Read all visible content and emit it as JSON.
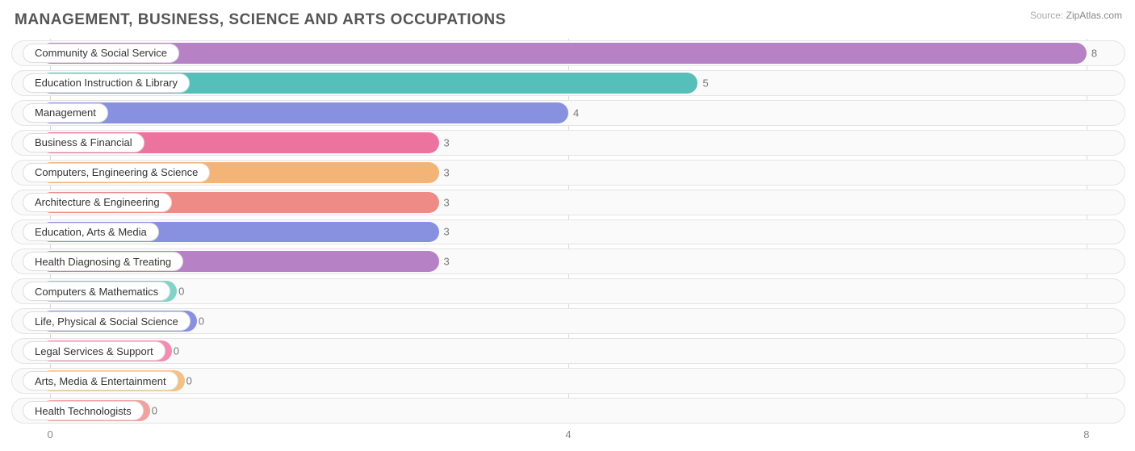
{
  "title": "MANAGEMENT, BUSINESS, SCIENCE AND ARTS OCCUPATIONS",
  "source_label": "Source:",
  "source_value": "ZipAtlas.com",
  "chart": {
    "type": "bar-horizontal",
    "xmin": -0.3,
    "xmax": 8.3,
    "xticks": [
      0,
      4,
      8
    ],
    "track_bg": "#fafafa",
    "track_border": "#e4e4e4",
    "grid_color": "#d8d8d8",
    "background": "#ffffff",
    "title_color": "#555555",
    "label_fontsize": 13,
    "title_fontsize": 19,
    "rows": [
      {
        "label": "Community & Social Service",
        "value": 8,
        "color": "#b781c5"
      },
      {
        "label": "Education Instruction & Library",
        "value": 5,
        "color": "#56bfba"
      },
      {
        "label": "Management",
        "value": 4,
        "color": "#8891e0"
      },
      {
        "label": "Business & Financial",
        "value": 3,
        "color": "#ed739f"
      },
      {
        "label": "Computers, Engineering & Science",
        "value": 3,
        "color": "#f4b475"
      },
      {
        "label": "Architecture & Engineering",
        "value": 3,
        "color": "#ef8b87"
      },
      {
        "label": "Education, Arts & Media",
        "value": 3,
        "color": "#8891e0"
      },
      {
        "label": "Health Diagnosing & Treating",
        "value": 3,
        "color": "#b781c5"
      },
      {
        "label": "Computers & Mathematics",
        "value": 0,
        "color": "#7fd4c7"
      },
      {
        "label": "Life, Physical & Social Science",
        "value": 0,
        "color": "#8891e0"
      },
      {
        "label": "Legal Services & Support",
        "value": 0,
        "color": "#f48bb3"
      },
      {
        "label": "Arts, Media & Entertainment",
        "value": 0,
        "color": "#f4c185"
      },
      {
        "label": "Health Technologists",
        "value": 0,
        "color": "#f1a29e"
      }
    ]
  }
}
